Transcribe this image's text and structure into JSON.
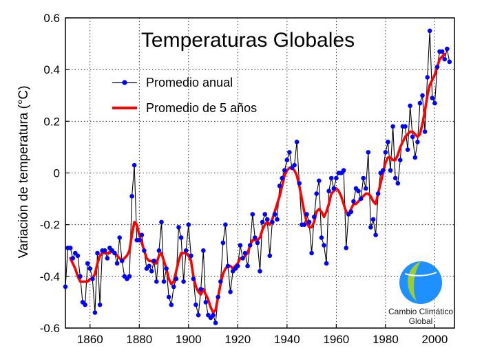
{
  "chart_data": {
    "type": "line",
    "title": "Temperaturas Globales",
    "xlabel": "",
    "ylabel": "Variación de temperatura  (°C)",
    "xlim": [
      1850,
      2008
    ],
    "ylim": [
      -0.6,
      0.6
    ],
    "x_ticks": [
      1860,
      1880,
      1900,
      1920,
      1940,
      1960,
      1980,
      2000
    ],
    "y_ticks": [
      -0.6,
      -0.4,
      -0.2,
      0,
      0.2,
      0.4,
      0.6
    ],
    "y_tick_labels": [
      "-0.6",
      "-0.4",
      "-0.2",
      "0",
      "0.2",
      "0.4",
      "0.6"
    ],
    "grid": "dotted",
    "legend_position": "top-left",
    "series": [
      {
        "name": "Promedio anual",
        "color": "#0000ff",
        "line_color": "#000000",
        "marker": "circle",
        "x": [
          1850,
          1851,
          1852,
          1853,
          1854,
          1855,
          1856,
          1857,
          1858,
          1859,
          1860,
          1861,
          1862,
          1863,
          1864,
          1865,
          1866,
          1867,
          1868,
          1869,
          1870,
          1871,
          1872,
          1873,
          1874,
          1875,
          1876,
          1877,
          1878,
          1879,
          1880,
          1881,
          1882,
          1883,
          1884,
          1885,
          1886,
          1887,
          1888,
          1889,
          1890,
          1891,
          1892,
          1893,
          1894,
          1895,
          1896,
          1897,
          1898,
          1899,
          1900,
          1901,
          1902,
          1903,
          1904,
          1905,
          1906,
          1907,
          1908,
          1909,
          1910,
          1911,
          1912,
          1913,
          1914,
          1915,
          1916,
          1917,
          1918,
          1919,
          1920,
          1921,
          1922,
          1923,
          1924,
          1925,
          1926,
          1927,
          1928,
          1929,
          1930,
          1931,
          1932,
          1933,
          1934,
          1935,
          1936,
          1937,
          1938,
          1939,
          1940,
          1941,
          1942,
          1943,
          1944,
          1945,
          1946,
          1947,
          1948,
          1949,
          1950,
          1951,
          1952,
          1953,
          1954,
          1955,
          1956,
          1957,
          1958,
          1959,
          1960,
          1961,
          1962,
          1963,
          1964,
          1965,
          1966,
          1967,
          1968,
          1969,
          1970,
          1971,
          1972,
          1973,
          1974,
          1975,
          1976,
          1977,
          1978,
          1979,
          1980,
          1981,
          1982,
          1983,
          1984,
          1985,
          1986,
          1987,
          1988,
          1989,
          1990,
          1991,
          1992,
          1993,
          1994,
          1995,
          1996,
          1997,
          1998,
          1999,
          2000,
          2001,
          2002,
          2003,
          2004,
          2005,
          2006
        ],
        "values": [
          -0.44,
          -0.29,
          -0.29,
          -0.33,
          -0.31,
          -0.32,
          -0.4,
          -0.5,
          -0.51,
          -0.35,
          -0.37,
          -0.41,
          -0.54,
          -0.31,
          -0.51,
          -0.3,
          -0.3,
          -0.33,
          -0.29,
          -0.3,
          -0.31,
          -0.35,
          -0.25,
          -0.34,
          -0.4,
          -0.41,
          -0.4,
          -0.09,
          0.03,
          -0.26,
          -0.26,
          -0.24,
          -0.3,
          -0.37,
          -0.36,
          -0.38,
          -0.34,
          -0.42,
          -0.3,
          -0.19,
          -0.42,
          -0.37,
          -0.48,
          -0.51,
          -0.44,
          -0.41,
          -0.21,
          -0.25,
          -0.42,
          -0.3,
          -0.2,
          -0.32,
          -0.41,
          -0.51,
          -0.55,
          -0.45,
          -0.3,
          -0.5,
          -0.55,
          -0.56,
          -0.55,
          -0.58,
          -0.48,
          -0.42,
          -0.27,
          -0.2,
          -0.36,
          -0.46,
          -0.38,
          -0.37,
          -0.36,
          -0.28,
          -0.33,
          -0.31,
          -0.36,
          -0.28,
          -0.16,
          -0.25,
          -0.27,
          -0.38,
          -0.19,
          -0.16,
          -0.18,
          -0.32,
          -0.19,
          -0.16,
          -0.18,
          -0.05,
          -0.02,
          0.01,
          0.05,
          0.08,
          0.02,
          0.03,
          0.12,
          -0.04,
          -0.2,
          -0.2,
          -0.16,
          -0.19,
          -0.31,
          -0.17,
          -0.08,
          -0.03,
          -0.25,
          -0.28,
          -0.35,
          -0.07,
          -0.02,
          -0.06,
          -0.02,
          0.0,
          0.0,
          0.01,
          -0.29,
          -0.16,
          -0.15,
          -0.11,
          -0.06,
          -0.07,
          -0.1,
          -0.02,
          -0.06,
          0.08,
          -0.21,
          -0.18,
          -0.24,
          -0.08,
          0.0,
          0.01,
          0.08,
          0.12,
          0.01,
          0.18,
          -0.02,
          -0.04,
          0.05,
          0.18,
          0.18,
          0.09,
          0.26,
          0.14,
          0.06,
          0.12,
          0.27,
          0.3,
          0.16,
          0.37,
          0.55,
          0.29,
          0.27,
          0.41,
          0.47,
          0.47,
          0.44,
          0.48,
          0.43
        ]
      },
      {
        "name": "Promedio de 5 años",
        "color": "#ff0000",
        "x": [
          1852,
          1853,
          1854,
          1855,
          1856,
          1857,
          1858,
          1859,
          1860,
          1861,
          1862,
          1863,
          1864,
          1865,
          1866,
          1867,
          1868,
          1869,
          1870,
          1871,
          1872,
          1873,
          1874,
          1875,
          1876,
          1877,
          1878,
          1879,
          1880,
          1881,
          1882,
          1883,
          1884,
          1885,
          1886,
          1887,
          1888,
          1889,
          1890,
          1891,
          1892,
          1893,
          1894,
          1895,
          1896,
          1897,
          1898,
          1899,
          1900,
          1901,
          1902,
          1903,
          1904,
          1905,
          1906,
          1907,
          1908,
          1909,
          1910,
          1911,
          1912,
          1913,
          1914,
          1915,
          1916,
          1917,
          1918,
          1919,
          1920,
          1921,
          1922,
          1923,
          1924,
          1925,
          1926,
          1927,
          1928,
          1929,
          1930,
          1931,
          1932,
          1933,
          1934,
          1935,
          1936,
          1937,
          1938,
          1939,
          1940,
          1941,
          1942,
          1943,
          1944,
          1945,
          1946,
          1947,
          1948,
          1949,
          1950,
          1951,
          1952,
          1953,
          1954,
          1955,
          1956,
          1957,
          1958,
          1959,
          1960,
          1961,
          1962,
          1963,
          1964,
          1965,
          1966,
          1967,
          1968,
          1969,
          1970,
          1971,
          1972,
          1973,
          1974,
          1975,
          1976,
          1977,
          1978,
          1979,
          1980,
          1981,
          1982,
          1983,
          1984,
          1985,
          1986,
          1987,
          1988,
          1989,
          1990,
          1991,
          1992,
          1993,
          1994,
          1995,
          1996,
          1997,
          1998,
          1999,
          2000,
          2001,
          2002,
          2003,
          2004
        ],
        "values": [
          -0.33,
          -0.35,
          -0.37,
          -0.4,
          -0.42,
          -0.42,
          -0.42,
          -0.42,
          -0.41,
          -0.41,
          -0.39,
          -0.35,
          -0.32,
          -0.31,
          -0.31,
          -0.31,
          -0.31,
          -0.3,
          -0.31,
          -0.32,
          -0.33,
          -0.34,
          -0.33,
          -0.32,
          -0.3,
          -0.24,
          -0.19,
          -0.2,
          -0.24,
          -0.27,
          -0.3,
          -0.33,
          -0.34,
          -0.34,
          -0.35,
          -0.35,
          -0.32,
          -0.31,
          -0.34,
          -0.37,
          -0.41,
          -0.43,
          -0.42,
          -0.38,
          -0.34,
          -0.31,
          -0.31,
          -0.31,
          -0.32,
          -0.34,
          -0.4,
          -0.44,
          -0.46,
          -0.47,
          -0.45,
          -0.47,
          -0.49,
          -0.52,
          -0.54,
          -0.53,
          -0.48,
          -0.43,
          -0.39,
          -0.37,
          -0.36,
          -0.36,
          -0.37,
          -0.36,
          -0.35,
          -0.33,
          -0.33,
          -0.32,
          -0.31,
          -0.28,
          -0.26,
          -0.26,
          -0.26,
          -0.25,
          -0.22,
          -0.2,
          -0.19,
          -0.2,
          -0.18,
          -0.15,
          -0.12,
          -0.09,
          -0.05,
          -0.01,
          0.01,
          0.02,
          0.02,
          0.01,
          -0.01,
          -0.05,
          -0.1,
          -0.15,
          -0.19,
          -0.21,
          -0.21,
          -0.19,
          -0.15,
          -0.14,
          -0.15,
          -0.17,
          -0.15,
          -0.12,
          -0.08,
          -0.07,
          -0.06,
          -0.07,
          -0.09,
          -0.12,
          -0.15,
          -0.16,
          -0.14,
          -0.12,
          -0.12,
          -0.11,
          -0.1,
          -0.09,
          -0.08,
          -0.08,
          -0.09,
          -0.11,
          -0.12,
          -0.08,
          -0.04,
          0.0,
          0.04,
          0.06,
          0.06,
          0.05,
          0.05,
          0.07,
          0.1,
          0.12,
          0.14,
          0.15,
          0.16,
          0.16,
          0.15,
          0.14,
          0.15,
          0.19,
          0.24,
          0.3,
          0.34,
          0.36,
          0.38,
          0.41,
          0.44,
          0.45,
          0.46
        ]
      }
    ]
  },
  "logo": {
    "line1": "Cambio Climático",
    "line2": "Global",
    "colors": [
      "#9acd32",
      "#1e90ff"
    ]
  }
}
